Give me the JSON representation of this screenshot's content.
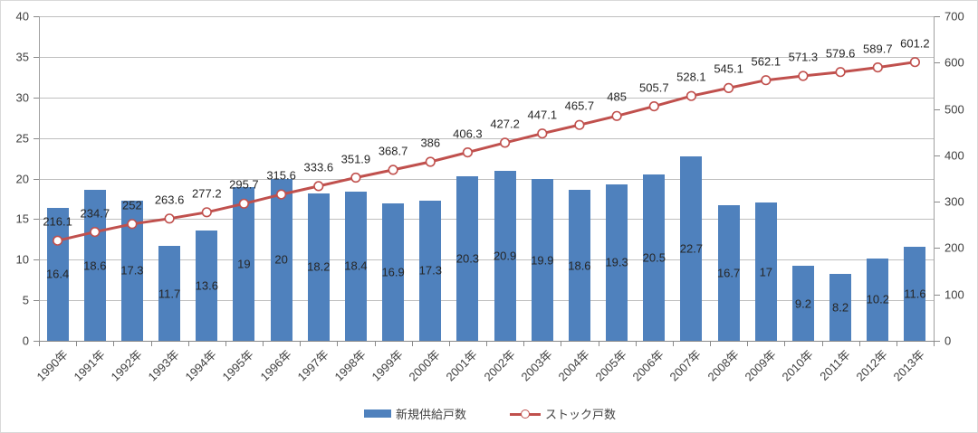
{
  "figure": {
    "background": "#ffffff",
    "border_color": "#d9d9d9"
  },
  "chart_data": {
    "type": "combo-bar-line",
    "categories": [
      "1990年",
      "1991年",
      "1992年",
      "1993年",
      "1994年",
      "1995年",
      "1996年",
      "1997年",
      "1998年",
      "1999年",
      "2000年",
      "2001年",
      "2002年",
      "2003年",
      "2004年",
      "2005年",
      "2006年",
      "2007年",
      "2008年",
      "2009年",
      "2010年",
      "2011年",
      "2012年",
      "2013年"
    ],
    "series": [
      {
        "name": "新規供給戸数",
        "type": "bar",
        "axis": "left",
        "color": "#4f81bd",
        "values": [
          16.4,
          18.6,
          17.3,
          11.7,
          13.6,
          19,
          20,
          18.2,
          18.4,
          16.9,
          17.3,
          20.3,
          20.9,
          19.9,
          18.6,
          19.3,
          20.5,
          22.7,
          16.7,
          17,
          9.2,
          8.2,
          10.2,
          11.6
        ]
      },
      {
        "name": "ストック戸数",
        "type": "line",
        "axis": "right",
        "color": "#c0504d",
        "marker": {
          "shape": "circle",
          "fill": "#ffffff",
          "stroke": "#c0504d"
        },
        "values": [
          216.1,
          234.7,
          252,
          263.6,
          277.2,
          295.7,
          315.6,
          333.6,
          351.9,
          368.7,
          386,
          406.3,
          427.2,
          447.1,
          465.7,
          485,
          505.7,
          528.1,
          545.1,
          562.1,
          571.3,
          579.6,
          589.7,
          601.2
        ]
      }
    ],
    "axes": {
      "left": {
        "min": 0,
        "max": 40,
        "step": 5,
        "ticks": [
          0,
          5,
          10,
          15,
          20,
          25,
          30,
          35,
          40
        ]
      },
      "right": {
        "min": 0,
        "max": 700,
        "step": 100,
        "ticks": [
          0,
          100,
          200,
          300,
          400,
          500,
          600,
          700
        ]
      }
    },
    "grid": "horizontal major gridlines of left axis",
    "legend_position": "bottom-center",
    "data_labels": {
      "bar": "center",
      "line": "above"
    },
    "colors": {
      "bar": "#4f81bd",
      "line": "#c0504d",
      "gridline": "#bfbfbf",
      "axis": "#898989",
      "text": "#3f3f3f",
      "label_text": "#262626"
    }
  }
}
